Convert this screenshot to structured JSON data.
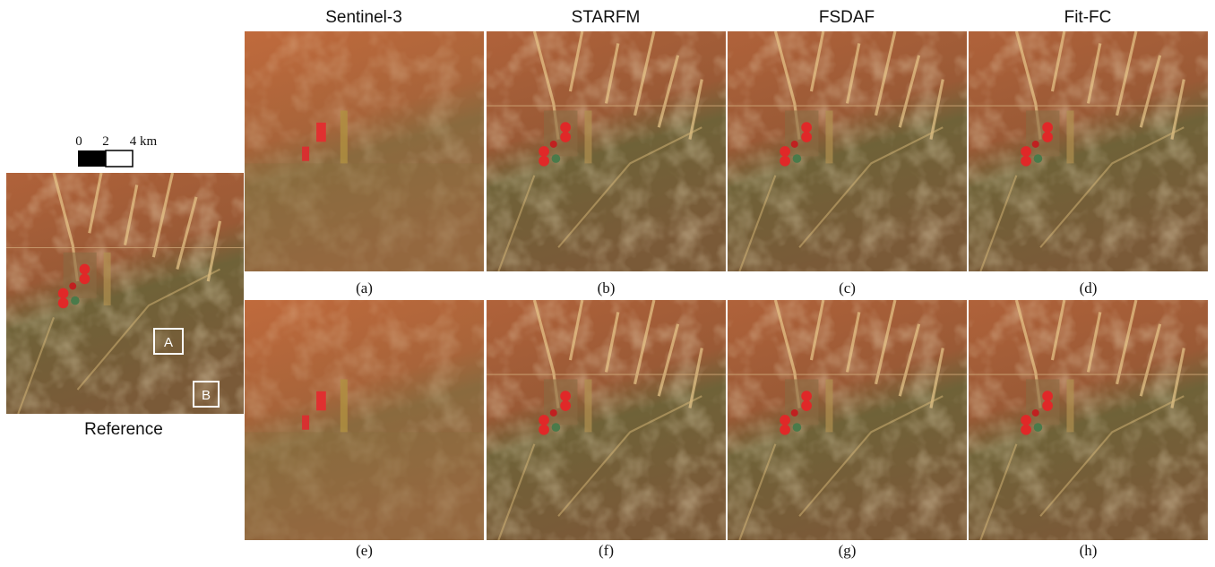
{
  "header": {
    "columns": [
      "Sentinel-3",
      "STARFM",
      "FSDAF",
      "Fit-FC"
    ]
  },
  "reference": {
    "label": "Reference",
    "scale_bar": [
      "0",
      "2",
      "4 km"
    ],
    "boxes": [
      "A",
      "B"
    ]
  },
  "panels": [
    "(a)",
    "(b)",
    "(c)",
    "(d)",
    "(e)",
    "(f)",
    "(g)",
    "(h)"
  ]
}
